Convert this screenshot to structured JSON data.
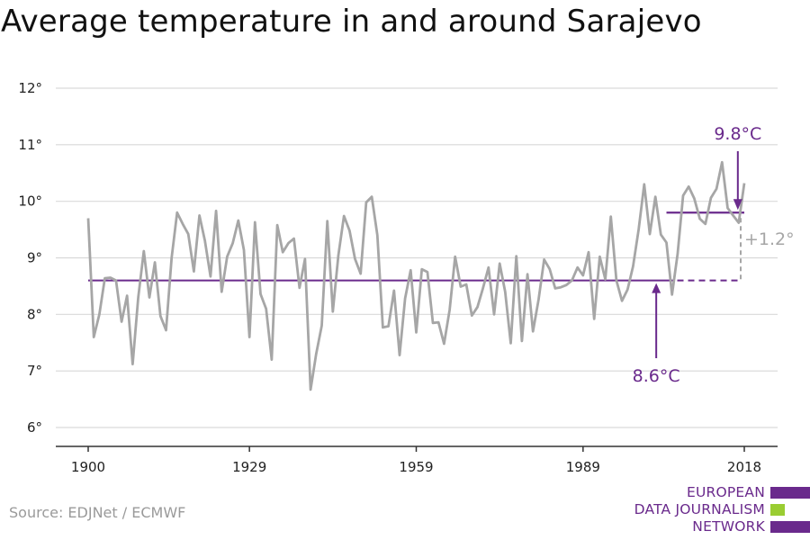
{
  "title": "Average temperature in and around Sarajevo",
  "source": "Source: EDJNet / ECMWF",
  "logo": {
    "lines": [
      "EUROPEAN",
      "DATA JOURNALISM",
      "NETWORK"
    ]
  },
  "colors": {
    "series": "#a6a6a6",
    "accent": "#6a2a8c",
    "grid": "#d9d9d9",
    "axis": "#333333",
    "logo_green": "#9acd32",
    "increase": "#a6a6a6"
  },
  "chart_data": {
    "type": "line",
    "title": "Average temperature in and around Sarajevo",
    "xlabel": "",
    "ylabel": "",
    "ylim": [
      6,
      12
    ],
    "xlim": [
      1900,
      2018
    ],
    "y_ticks": [
      6,
      7,
      8,
      9,
      10,
      11,
      12
    ],
    "y_tick_labels": [
      "6°",
      "7°",
      "8°",
      "9°",
      "10°",
      "11°",
      "12°"
    ],
    "x_ticks": [
      1900,
      1929,
      1959,
      1989,
      2018
    ],
    "x_tick_labels": [
      "1900",
      "1929",
      "1959",
      "1989",
      "2018"
    ],
    "grid": true,
    "series": [
      {
        "x": [
          1900,
          1901,
          1902,
          1903,
          1904,
          1905,
          1906,
          1907,
          1908,
          1909,
          1910,
          1911,
          1912,
          1913,
          1914,
          1915,
          1916,
          1917,
          1918,
          1919,
          1920,
          1921,
          1922,
          1923,
          1924,
          1925,
          1926,
          1927,
          1928,
          1929,
          1930,
          1931,
          1932,
          1933,
          1934,
          1935,
          1936,
          1937,
          1938,
          1939,
          1940,
          1941,
          1942,
          1943,
          1944,
          1945,
          1946,
          1947,
          1948,
          1949,
          1950,
          1951,
          1952,
          1953,
          1954,
          1955,
          1956,
          1957,
          1958,
          1959,
          1960,
          1961,
          1962,
          1963,
          1964,
          1965,
          1966,
          1967,
          1968,
          1969,
          1970,
          1971,
          1972,
          1973,
          1974,
          1975,
          1976,
          1977,
          1978,
          1979,
          1980,
          1981,
          1982,
          1983,
          1984,
          1985,
          1986,
          1987,
          1988,
          1989,
          1990,
          1991,
          1992,
          1993,
          1994,
          1995,
          1996,
          1997,
          1998,
          1999,
          2000,
          2001,
          2002,
          2003,
          2004,
          2005,
          2006,
          2007,
          2008,
          2009,
          2010,
          2011,
          2012,
          2013,
          2014,
          2015,
          2016,
          2017,
          2018
        ],
        "values": [
          9.7,
          7.6,
          8.0,
          8.64,
          8.65,
          8.6,
          7.87,
          8.33,
          7.12,
          8.3,
          9.12,
          8.3,
          8.92,
          7.97,
          7.72,
          9.0,
          9.8,
          9.6,
          9.42,
          8.76,
          9.75,
          9.3,
          8.67,
          9.83,
          8.4,
          9.02,
          9.26,
          9.66,
          9.14,
          7.6,
          9.63,
          8.36,
          8.1,
          7.2,
          9.58,
          9.1,
          9.26,
          9.34,
          8.47,
          8.98,
          6.67,
          7.3,
          7.8,
          9.65,
          8.05,
          9.05,
          9.74,
          9.48,
          8.98,
          8.72,
          9.98,
          10.08,
          9.4,
          7.77,
          7.79,
          8.42,
          7.28,
          8.28,
          8.78,
          7.68,
          8.8,
          8.75,
          7.85,
          7.86,
          7.48,
          8.08,
          9.02,
          8.49,
          8.53,
          7.98,
          8.13,
          8.46,
          8.83,
          8.0,
          8.9,
          8.4,
          7.49,
          9.03,
          7.53,
          8.71,
          7.7,
          8.26,
          8.97,
          8.8,
          8.46,
          8.48,
          8.52,
          8.6,
          8.83,
          8.69,
          9.1,
          7.92,
          9.02,
          8.62,
          9.73,
          8.6,
          8.24,
          8.44,
          8.85,
          9.5,
          10.3,
          9.42,
          10.08,
          9.41,
          9.27,
          8.35,
          9.07,
          10.1,
          10.26,
          10.05,
          9.69,
          9.6,
          10.06,
          10.22,
          10.69,
          9.88,
          9.75,
          9.62,
          10.32
        ]
      }
    ],
    "annotations": {
      "baseline_value": 8.6,
      "baseline_label": "8.6°C",
      "baseline_x": [
        1900,
        2018
      ],
      "baseline_solid_until": 2004,
      "recent_value": 9.8,
      "recent_label": "9.8°C",
      "recent_x": [
        2004,
        2018
      ],
      "increase_label": "+1.2°"
    }
  }
}
